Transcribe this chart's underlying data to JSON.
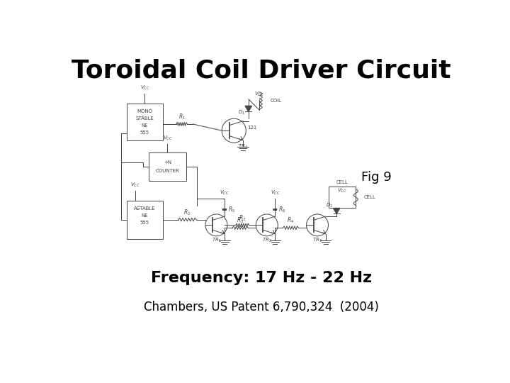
{
  "title": "Toroidal Coil Driver Circuit",
  "fig_label": "Fig 9",
  "frequency_text": "Frequency: 17 Hz - 22 Hz",
  "citation_text": "Chambers, US Patent 6,790,324  (2004)",
  "background_color": "#ffffff",
  "title_fontsize": 26,
  "title_fontweight": "bold",
  "fig_label_fontsize": 13,
  "frequency_fontsize": 16,
  "frequency_fontweight": "bold",
  "citation_fontsize": 12
}
